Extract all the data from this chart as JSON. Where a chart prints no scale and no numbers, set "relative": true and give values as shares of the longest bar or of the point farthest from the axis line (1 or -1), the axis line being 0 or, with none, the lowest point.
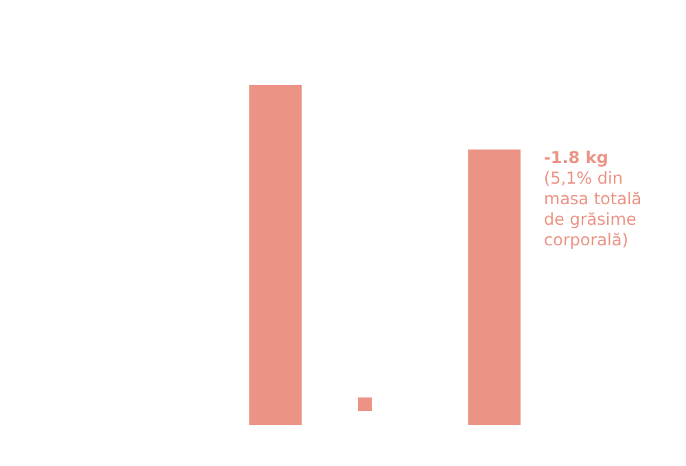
{
  "chart_data": {
    "type": "bar",
    "relative": true,
    "categories": [
      null,
      null
    ],
    "series": [
      {
        "color": "#eb9486",
        "values": [
          1,
          0.81
        ]
      }
    ],
    "annotations": [
      "-1.8 kg",
      "(5,1% din masa totală de grăsime corporală)"
    ]
  }
}
